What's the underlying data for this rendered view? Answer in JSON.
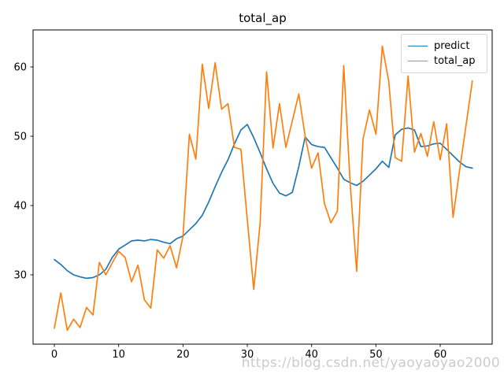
{
  "watermark": "https://blog.csdn.net/yaoyaoyao2000",
  "chart_data": {
    "type": "line",
    "title": "total_ap",
    "xlabel": "",
    "ylabel": "",
    "grid": false,
    "legend_position": "upper right",
    "xlim": [
      -3.31,
      68.08
    ],
    "ylim": [
      20.0,
      65.34
    ],
    "xticks": [
      0,
      10,
      20,
      30,
      40,
      50,
      60
    ],
    "yticks": [
      30,
      40,
      50,
      60
    ],
    "x": [
      0,
      1,
      2,
      3,
      4,
      5,
      6,
      7,
      8,
      9,
      10,
      11,
      12,
      13,
      14,
      15,
      16,
      17,
      18,
      19,
      20,
      21,
      22,
      23,
      24,
      25,
      26,
      27,
      28,
      29,
      30,
      31,
      32,
      33,
      34,
      35,
      36,
      37,
      38,
      39,
      40,
      41,
      42,
      43,
      44,
      45,
      46,
      47,
      48,
      49,
      50,
      51,
      52,
      53,
      54,
      55,
      56,
      57,
      58,
      59,
      60,
      61,
      62,
      63,
      64,
      65
    ],
    "series": [
      {
        "name": "predict",
        "color": "#1f77b4",
        "values": [
          32.2,
          31.5,
          30.6,
          30.0,
          29.7,
          29.5,
          29.6,
          30.0,
          30.8,
          32.5,
          33.7,
          34.3,
          34.9,
          35.0,
          34.9,
          35.1,
          35.0,
          34.7,
          34.5,
          35.2,
          35.6,
          36.5,
          37.4,
          38.6,
          40.5,
          42.7,
          44.8,
          46.6,
          48.9,
          50.9,
          51.7,
          49.8,
          47.6,
          45.3,
          43.2,
          41.8,
          41.4,
          41.9,
          45.6,
          49.9,
          48.8,
          48.5,
          48.4,
          46.9,
          45.4,
          43.8,
          43.3,
          42.9,
          43.5,
          44.4,
          45.3,
          46.4,
          45.5,
          50.2,
          51.0,
          51.2,
          50.9,
          48.5,
          48.6,
          48.9,
          49.0,
          48.1,
          47.2,
          46.3,
          45.6,
          45.4
        ]
      },
      {
        "name": "total_ap",
        "color": "#ff7f0e",
        "values": [
          22.3,
          27.4,
          22.0,
          23.6,
          22.4,
          25.3,
          24.2,
          31.8,
          30.0,
          31.7,
          33.4,
          32.5,
          29.0,
          31.4,
          26.4,
          25.2,
          33.6,
          32.4,
          34.2,
          31.0,
          35.6,
          50.3,
          46.7,
          60.4,
          54.0,
          60.6,
          53.9,
          54.7,
          48.4,
          48.1,
          38.0,
          27.9,
          37.6,
          59.3,
          48.3,
          54.7,
          48.4,
          52.2,
          56.1,
          50.0,
          45.4,
          47.6,
          40.3,
          37.5,
          39.2,
          60.2,
          43.1,
          30.5,
          49.6,
          53.8,
          50.3,
          63.0,
          57.9,
          46.9,
          46.4,
          58.7,
          47.7,
          50.4,
          47.1,
          52.1,
          46.6,
          51.8,
          38.3,
          45.0,
          51.5,
          58.0
        ]
      }
    ]
  }
}
